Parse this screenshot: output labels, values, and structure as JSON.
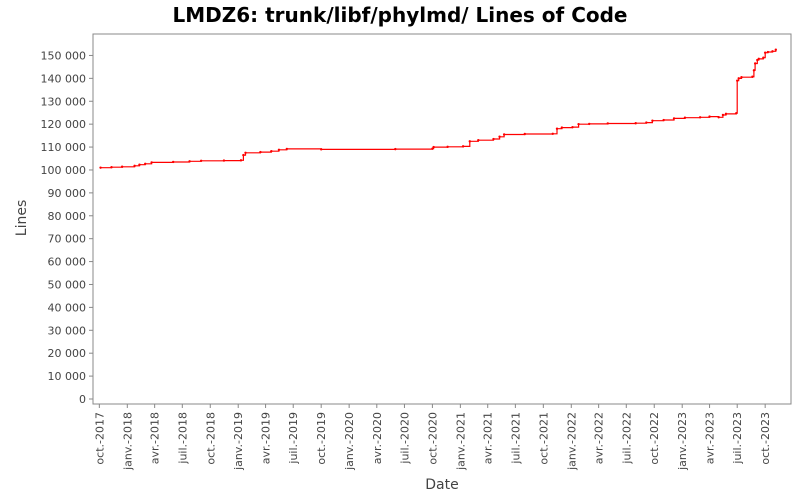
{
  "chart_data": {
    "type": "line",
    "title": "LMDZ6: trunk/libf/phylmd/ Lines of Code",
    "xlabel": "Date",
    "ylabel": "Lines",
    "x_range": [
      "2017-09-20",
      "2023-12-25"
    ],
    "ylim": [
      0,
      155000
    ],
    "x_ticks": [
      {
        "date": "2017-10-01",
        "label": "oct.-2017"
      },
      {
        "date": "2018-01-01",
        "label": "janv.-2018"
      },
      {
        "date": "2018-04-01",
        "label": "avr.-2018"
      },
      {
        "date": "2018-07-01",
        "label": "juil.-2018"
      },
      {
        "date": "2018-10-01",
        "label": "oct.-2018"
      },
      {
        "date": "2019-01-01",
        "label": "janv.-2019"
      },
      {
        "date": "2019-04-01",
        "label": "avr.-2019"
      },
      {
        "date": "2019-07-01",
        "label": "juil.-2019"
      },
      {
        "date": "2019-10-01",
        "label": "oct.-2019"
      },
      {
        "date": "2020-01-01",
        "label": "janv.-2020"
      },
      {
        "date": "2020-04-01",
        "label": "avr.-2020"
      },
      {
        "date": "2020-07-01",
        "label": "juil.-2020"
      },
      {
        "date": "2020-10-01",
        "label": "oct.-2020"
      },
      {
        "date": "2021-01-01",
        "label": "janv.-2021"
      },
      {
        "date": "2021-04-01",
        "label": "avr.-2021"
      },
      {
        "date": "2021-07-01",
        "label": "juil.-2021"
      },
      {
        "date": "2021-10-01",
        "label": "oct.-2021"
      },
      {
        "date": "2022-01-01",
        "label": "janv.-2022"
      },
      {
        "date": "2022-04-01",
        "label": "avr.-2022"
      },
      {
        "date": "2022-07-01",
        "label": "juil.-2022"
      },
      {
        "date": "2022-10-01",
        "label": "oct.-2022"
      },
      {
        "date": "2023-01-01",
        "label": "janv.-2023"
      },
      {
        "date": "2023-04-01",
        "label": "avr.-2023"
      },
      {
        "date": "2023-07-01",
        "label": "juil.-2023"
      },
      {
        "date": "2023-10-01",
        "label": "oct.-2023"
      }
    ],
    "y_ticks": [
      {
        "value": 0,
        "label": "0"
      },
      {
        "value": 10000,
        "label": "10 000"
      },
      {
        "value": 20000,
        "label": "20 000"
      },
      {
        "value": 30000,
        "label": "30 000"
      },
      {
        "value": 40000,
        "label": "40 000"
      },
      {
        "value": 50000,
        "label": "50 000"
      },
      {
        "value": 60000,
        "label": "60 000"
      },
      {
        "value": 70000,
        "label": "70 000"
      },
      {
        "value": 80000,
        "label": "80 000"
      },
      {
        "value": 90000,
        "label": "90 000"
      },
      {
        "value": 100000,
        "label": "100 000"
      },
      {
        "value": 110000,
        "label": "110 000"
      },
      {
        "value": 120000,
        "label": "120 000"
      },
      {
        "value": 130000,
        "label": "130 000"
      },
      {
        "value": 140000,
        "label": "140 000"
      },
      {
        "value": 150000,
        "label": "150 000"
      }
    ],
    "grid": false,
    "legend": "none",
    "series": [
      {
        "color": "#ff0000",
        "step": true,
        "points": [
          {
            "x": "2017-10-05",
            "y": 101000
          },
          {
            "x": "2017-11-10",
            "y": 101200
          },
          {
            "x": "2017-12-15",
            "y": 101400
          },
          {
            "x": "2018-01-25",
            "y": 101800
          },
          {
            "x": "2018-02-10",
            "y": 102300
          },
          {
            "x": "2018-03-01",
            "y": 102700
          },
          {
            "x": "2018-03-22",
            "y": 103300
          },
          {
            "x": "2018-06-01",
            "y": 103500
          },
          {
            "x": "2018-07-25",
            "y": 103800
          },
          {
            "x": "2018-09-01",
            "y": 104000
          },
          {
            "x": "2018-11-15",
            "y": 104100
          },
          {
            "x": "2019-01-10",
            "y": 104200
          },
          {
            "x": "2019-01-18",
            "y": 106500
          },
          {
            "x": "2019-01-25",
            "y": 107500
          },
          {
            "x": "2019-03-15",
            "y": 107800
          },
          {
            "x": "2019-04-20",
            "y": 108200
          },
          {
            "x": "2019-05-15",
            "y": 108800
          },
          {
            "x": "2019-06-10",
            "y": 109200
          },
          {
            "x": "2019-10-01",
            "y": 109000
          },
          {
            "x": "2020-06-01",
            "y": 109100
          },
          {
            "x": "2020-10-01",
            "y": 109300
          },
          {
            "x": "2020-10-05",
            "y": 110000
          },
          {
            "x": "2020-11-20",
            "y": 110100
          },
          {
            "x": "2021-01-10",
            "y": 110300
          },
          {
            "x": "2021-02-01",
            "y": 112500
          },
          {
            "x": "2021-03-01",
            "y": 113000
          },
          {
            "x": "2021-04-20",
            "y": 113500
          },
          {
            "x": "2021-05-10",
            "y": 114500
          },
          {
            "x": "2021-05-25",
            "y": 115500
          },
          {
            "x": "2021-08-01",
            "y": 115700
          },
          {
            "x": "2021-11-01",
            "y": 115800
          },
          {
            "x": "2021-11-15",
            "y": 118000
          },
          {
            "x": "2021-12-01",
            "y": 118500
          },
          {
            "x": "2022-01-05",
            "y": 118700
          },
          {
            "x": "2022-01-25",
            "y": 120000
          },
          {
            "x": "2022-03-01",
            "y": 120100
          },
          {
            "x": "2022-05-01",
            "y": 120300
          },
          {
            "x": "2022-08-01",
            "y": 120400
          },
          {
            "x": "2022-09-05",
            "y": 120700
          },
          {
            "x": "2022-09-25",
            "y": 121500
          },
          {
            "x": "2022-11-01",
            "y": 121800
          },
          {
            "x": "2022-12-05",
            "y": 122500
          },
          {
            "x": "2023-01-10",
            "y": 122800
          },
          {
            "x": "2023-03-01",
            "y": 123000
          },
          {
            "x": "2023-04-01",
            "y": 123300
          },
          {
            "x": "2023-05-01",
            "y": 123000
          },
          {
            "x": "2023-05-15",
            "y": 124000
          },
          {
            "x": "2023-05-25",
            "y": 124500
          },
          {
            "x": "2023-06-28",
            "y": 124800
          },
          {
            "x": "2023-07-01",
            "y": 139000
          },
          {
            "x": "2023-07-06",
            "y": 140000
          },
          {
            "x": "2023-07-15",
            "y": 140500
          },
          {
            "x": "2023-08-20",
            "y": 140700
          },
          {
            "x": "2023-08-25",
            "y": 143500
          },
          {
            "x": "2023-08-29",
            "y": 146500
          },
          {
            "x": "2023-09-05",
            "y": 148000
          },
          {
            "x": "2023-09-10",
            "y": 148500
          },
          {
            "x": "2023-09-25",
            "y": 149000
          },
          {
            "x": "2023-10-01",
            "y": 151200
          },
          {
            "x": "2023-10-10",
            "y": 151500
          },
          {
            "x": "2023-10-25",
            "y": 151800
          },
          {
            "x": "2023-11-05",
            "y": 152500
          }
        ]
      }
    ]
  }
}
